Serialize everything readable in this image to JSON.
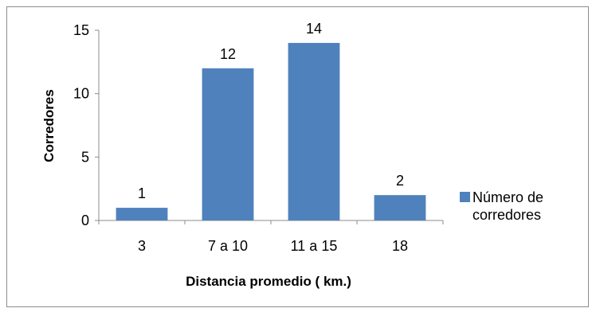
{
  "chart_data": {
    "type": "bar",
    "categories": [
      "3",
      "7 a 10",
      "11 a 15",
      "18"
    ],
    "series": [
      {
        "name": "Número de corredores",
        "values": [
          1,
          12,
          14,
          2
        ],
        "color": "#4f81bd"
      }
    ],
    "data_labels": [
      "1",
      "12",
      "14",
      "2"
    ],
    "xlabel": "Distancia promedio ( km.)",
    "ylabel": "Corredores",
    "ylim": [
      0,
      15
    ],
    "yticks": [
      "0",
      "5",
      "10",
      "15"
    ],
    "legend": {
      "placement": "right",
      "lines": [
        "Número de",
        "corredores"
      ]
    },
    "grid": false
  }
}
